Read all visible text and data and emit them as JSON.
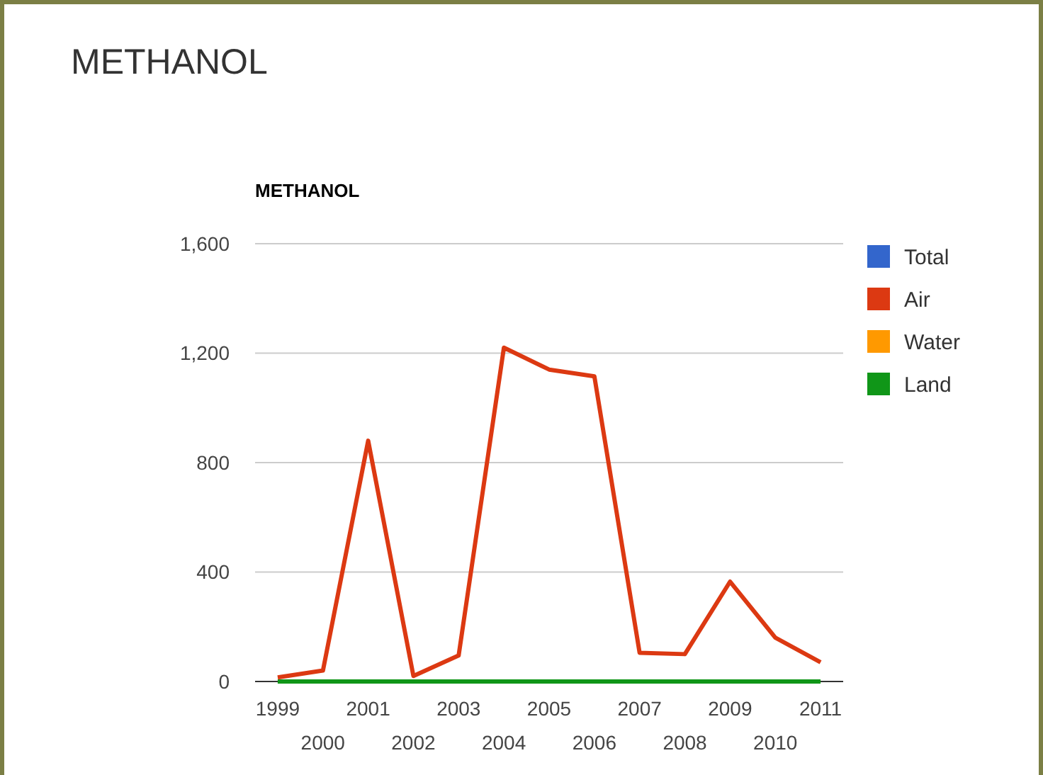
{
  "chart_data": {
    "type": "line",
    "title": "METHANOL",
    "subtitle": "METHANOL",
    "categories": [
      "1999",
      "2000",
      "2001",
      "2002",
      "2003",
      "2004",
      "2005",
      "2006",
      "2007",
      "2008",
      "2009",
      "2010",
      "2011"
    ],
    "series": [
      {
        "name": "Total",
        "color": "#3366cc",
        "values": [
          null,
          null,
          null,
          null,
          null,
          null,
          null,
          null,
          null,
          null,
          null,
          null,
          null
        ]
      },
      {
        "name": "Air",
        "color": "#dc3912",
        "values": [
          15,
          40,
          880,
          20,
          95,
          1220,
          1140,
          1115,
          105,
          100,
          365,
          160,
          70
        ]
      },
      {
        "name": "Water",
        "color": "#ff9900",
        "values": [
          null,
          null,
          null,
          null,
          null,
          null,
          null,
          null,
          null,
          null,
          null,
          null,
          null
        ]
      },
      {
        "name": "Land",
        "color": "#109618",
        "values": [
          0,
          0,
          0,
          0,
          0,
          0,
          0,
          0,
          0,
          0,
          0,
          0,
          0
        ]
      }
    ],
    "ylim": [
      0,
      1600
    ],
    "yticks": [
      {
        "value": 0,
        "label": "0"
      },
      {
        "value": 400,
        "label": "400"
      },
      {
        "value": 800,
        "label": "800"
      },
      {
        "value": 1200,
        "label": "1,200"
      },
      {
        "value": 1600,
        "label": "1,600"
      }
    ],
    "grid": "y",
    "legend": "right",
    "marker": "none",
    "line_style": "solid"
  }
}
